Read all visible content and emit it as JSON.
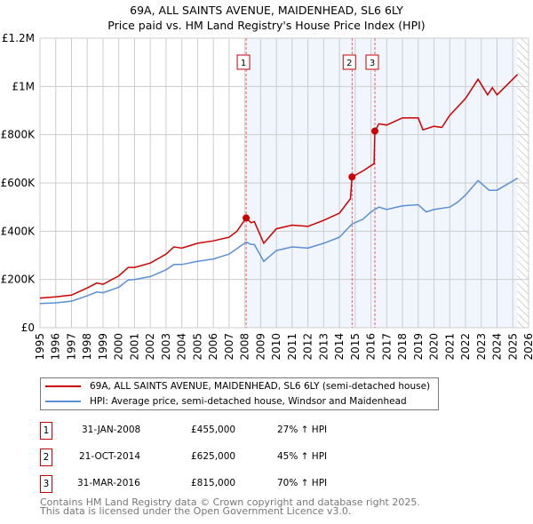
{
  "chart_data": {
    "type": "line",
    "title": "69A, ALL SAINTS AVENUE, MAIDENHEAD, SL6 6LY",
    "subtitle": "Price paid vs. HM Land Registry's House Price Index (HPI)",
    "xlim": [
      1995,
      2026
    ],
    "ylim": [
      0,
      1200000
    ],
    "x_ticks": [
      "1995",
      "1996",
      "1997",
      "1998",
      "1999",
      "2000",
      "2001",
      "2002",
      "2003",
      "2004",
      "2005",
      "2006",
      "2007",
      "2008",
      "2009",
      "2010",
      "2011",
      "2012",
      "2013",
      "2014",
      "2015",
      "2016",
      "2017",
      "2018",
      "2019",
      "2020",
      "2021",
      "2022",
      "2023",
      "2024",
      "2025",
      "2026"
    ],
    "y_ticks": [
      {
        "v": 0,
        "label": "£0"
      },
      {
        "v": 200000,
        "label": "£200K"
      },
      {
        "v": 400000,
        "label": "£400K"
      },
      {
        "v": 600000,
        "label": "£600K"
      },
      {
        "v": 800000,
        "label": "£800K"
      },
      {
        "v": 1000000,
        "label": "£1M"
      },
      {
        "v": 1200000,
        "label": "£1.2M"
      }
    ],
    "grid": true,
    "shaded_range": [
      2008.08,
      2025.3
    ],
    "hatched_range": [
      2025.3,
      2026
    ],
    "series": [
      {
        "name": "69A, ALL SAINTS AVENUE, MAIDENHEAD, SL6 6LY (semi-detached house)",
        "color": "#cc0000",
        "x": [
          1995,
          1996,
          1997,
          1998,
          1998.6,
          1999,
          2000,
          2000.6,
          2001,
          2002,
          2003,
          2003.5,
          2004,
          2005,
          2006,
          2007,
          2007.5,
          2008.08,
          2008.4,
          2008.6,
          2009.2,
          2010,
          2011,
          2012,
          2013,
          2014,
          2014.7,
          2014.8,
          2015.5,
          2016.2,
          2016.25,
          2016.5,
          2017,
          2018,
          2019,
          2019.3,
          2020,
          2020.5,
          2021,
          2022,
          2022.8,
          2023.4,
          2023.7,
          2024,
          2025.3
        ],
        "y": [
          123000,
          128000,
          135000,
          165000,
          185000,
          180000,
          215000,
          250000,
          250000,
          268000,
          305000,
          335000,
          330000,
          350000,
          360000,
          375000,
          400000,
          455000,
          435000,
          440000,
          350000,
          410000,
          425000,
          420000,
          445000,
          475000,
          535000,
          625000,
          650000,
          680000,
          815000,
          845000,
          840000,
          870000,
          870000,
          820000,
          835000,
          830000,
          880000,
          950000,
          1030000,
          965000,
          995000,
          965000,
          1050000
        ]
      },
      {
        "name": "HPI: Average price, semi-detached house, Windsor and Maidenhead",
        "color": "#5b8fd6",
        "x": [
          1995,
          1996,
          1997,
          1998,
          1998.6,
          1999,
          2000,
          2000.6,
          2001,
          2002,
          2003,
          2003.5,
          2004,
          2005,
          2006,
          2007,
          2008.08,
          2008.4,
          2008.6,
          2009.2,
          2010,
          2011,
          2012,
          2013,
          2014,
          2014.8,
          2015.5,
          2016,
          2016.5,
          2017,
          2018,
          2019,
          2019.5,
          2020,
          2021,
          2021.5,
          2022,
          2022.8,
          2023.5,
          2024,
          2025.3
        ],
        "y": [
          100000,
          103000,
          110000,
          132000,
          148000,
          145000,
          168000,
          198000,
          200000,
          212000,
          240000,
          262000,
          262000,
          275000,
          285000,
          305000,
          355000,
          345000,
          345000,
          275000,
          320000,
          335000,
          330000,
          350000,
          375000,
          430000,
          450000,
          480000,
          500000,
          490000,
          505000,
          510000,
          480000,
          490000,
          500000,
          520000,
          550000,
          610000,
          570000,
          570000,
          620000
        ]
      }
    ],
    "annotations": [
      {
        "label": "1",
        "x": 2008.08,
        "y": 455000
      },
      {
        "label": "2",
        "x": 2014.8,
        "y": 625000
      },
      {
        "label": "3",
        "x": 2016.25,
        "y": 815000
      }
    ]
  },
  "transactions": [
    {
      "num": "1",
      "date": "31-JAN-2008",
      "price": "£455,000",
      "hpi": "27% ↑ HPI"
    },
    {
      "num": "2",
      "date": "21-OCT-2014",
      "price": "£625,000",
      "hpi": "45% ↑ HPI"
    },
    {
      "num": "3",
      "date": "31-MAR-2016",
      "price": "£815,000",
      "hpi": "70% ↑ HPI"
    }
  ],
  "footer": {
    "line1": "Contains HM Land Registry data © Crown copyright and database right 2025.",
    "line2": "This data is licensed under the Open Government Licence v3.0."
  }
}
